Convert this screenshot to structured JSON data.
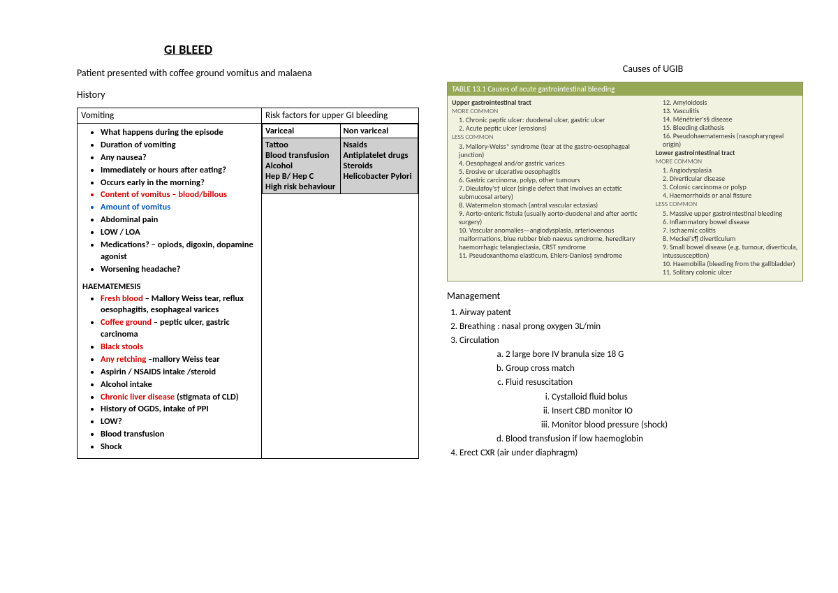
{
  "title": "GI BLEED",
  "presentation": "Patient presented with coffee ground vomitus and malaena",
  "history_label": "History",
  "outer_headers": {
    "left": "Vomiting",
    "right": "Risk factors for upper GI bleeding"
  },
  "inner_table": {
    "head": {
      "c1": "Variceal",
      "c2": "Non variceal"
    },
    "row": {
      "c1": "Tattoo\nBlood transfusion\nAlcohol\nHep B/ Hep C\nHigh risk behaviour",
      "c2": "Nsaids\nAntiplatelet drugs\nSteroids\nHelicobacter Pylori"
    }
  },
  "vomiting_bullets": [
    {
      "text": "What happens during the episode"
    },
    {
      "text": "Duration of vomiting"
    },
    {
      "text": "Any nausea?"
    },
    {
      "text": "Immediately or hours after eating?"
    },
    {
      "text": "Occurs early in the morning?"
    },
    {
      "text": "Content of vomitus – blood/billous",
      "cls": "red"
    },
    {
      "text": "Amount of vomitus",
      "cls": "blue"
    },
    {
      "text": "Abdominal pain"
    },
    {
      "text": "LOW / LOA"
    },
    {
      "text": "Medications? – opiods, digoxin, dopamine agonist"
    },
    {
      "text": "Worsening headache?"
    }
  ],
  "haem_label": "HAEMATEMESIS",
  "haem_bullets": [
    {
      "pre": "Fresh blood",
      "post": " – Mallory Weiss tear, reflux oesophagitis, esophageal varices",
      "cls": "red"
    },
    {
      "pre": "Coffee ground",
      "post": " – peptic ulcer, gastric carcinoma",
      "cls": "red"
    },
    {
      "pre": "Black stools",
      "post": "",
      "cls": "red"
    },
    {
      "pre": "Any retching",
      "post": " –mallory Weiss tear",
      "cls": "red"
    },
    {
      "pre": "Aspirin / NSAIDS intake /steroid",
      "post": ""
    },
    {
      "pre": "Alcohol intake",
      "post": ""
    },
    {
      "pre": "Chronic liver disease",
      "post": " (stigmata of CLD)",
      "cls": "red"
    },
    {
      "pre": "History of OGDS, intake of PPI",
      "post": ""
    },
    {
      "pre": "LOW?",
      "post": ""
    },
    {
      "pre": "Blood transfusion",
      "post": ""
    },
    {
      "pre": "Shock",
      "post": ""
    }
  ],
  "causes_title": "Causes of UGIB",
  "causes_table": {
    "caption": "TABLE 13.1   Causes of acute gastrointestinal bleeding",
    "upper": {
      "title": "Upper gastrointestinal tract",
      "more": "MORE COMMON",
      "more_items": [
        "1. Chronic peptic ulcer: duodenal ulcer, gastric ulcer",
        "2. Acute peptic ulcer (erosions)"
      ],
      "less": "LESS COMMON",
      "less_items": [
        "3. Mallory-Weiss* syndrome (tear at the gastro-oesophageal junction)",
        "4. Oesophageal and/or gastric varices",
        "5. Erosive or ulcerative oesophagitis",
        "6. Gastric carcinoma, polyp, other tumours",
        "7. Dieulafoy's† ulcer (single defect that involves an ectatic submucosal artery)",
        "8. Watermelon stomach (antral vascular ectasias)",
        "9. Aorto-enteric fistula (usually aorto-duodenal and after aortic surgery)",
        "10. Vascular anomalies—angiodysplasia, arteriovenous malformations, blue rubber bleb naevus syndrome, hereditary haemorrhagic telangiectasia, CRST syndrome",
        "11. Pseudoxanthoma elasticum, Ehlers-Danlos‡ syndrome"
      ],
      "tail": [
        "12. Amyloidosis",
        "13. Vasculitis",
        "14. Ménétrier's§ disease",
        "15. Bleeding diathesis",
        "16. Pseudohaematemesis (nasopharyngeal origin)"
      ]
    },
    "lower": {
      "title": "Lower gastrointestinal tract",
      "more": "MORE COMMON",
      "more_items": [
        "1. Angiodysplasia",
        "2. Diverticular disease",
        "3. Colonic carcinoma or polyp",
        "4. Haemorrhoids or anal fissure"
      ],
      "less": "LESS COMMON",
      "less_items": [
        "5. Massive upper gastrointestinal bleeding",
        "6. Inflammatory bowel disease",
        "7. Ischaemic colitis",
        "8. Meckel's¶ diverticulum",
        "9. Small bowel disease (e.g. tumour, diverticula, intussusception)",
        "10. Haemobilia (bleeding from the gallbladder)",
        "11. Solitary colonic ulcer"
      ]
    }
  },
  "mgmt_title": "Management",
  "mgmt": [
    {
      "t": "Airway patent"
    },
    {
      "t": "Breathing : nasal prong oxygen 3L/min"
    },
    {
      "t": "Circulation",
      "sub": [
        {
          "t": "2 large bore IV branula size 18 G"
        },
        {
          "t": "Group cross match"
        },
        {
          "t": "Fluid resuscitation",
          "sub": [
            {
              "t": "Cystalloid fluid bolus"
            },
            {
              "t": "Insert CBD monitor IO"
            },
            {
              "t": "Monitor blood pressure (shock)"
            }
          ]
        },
        {
          "t": "Blood transfusion if low haemoglobin"
        }
      ]
    },
    {
      "t": "Erect CXR (air under diaphragm)"
    }
  ],
  "colors": {
    "red": "#d40000",
    "blue": "#0055c4",
    "olive_header": "#97a857",
    "olive_bg": "#f2f2e0",
    "grey_cell": "#cfcfcf",
    "background": "#ffffff"
  }
}
